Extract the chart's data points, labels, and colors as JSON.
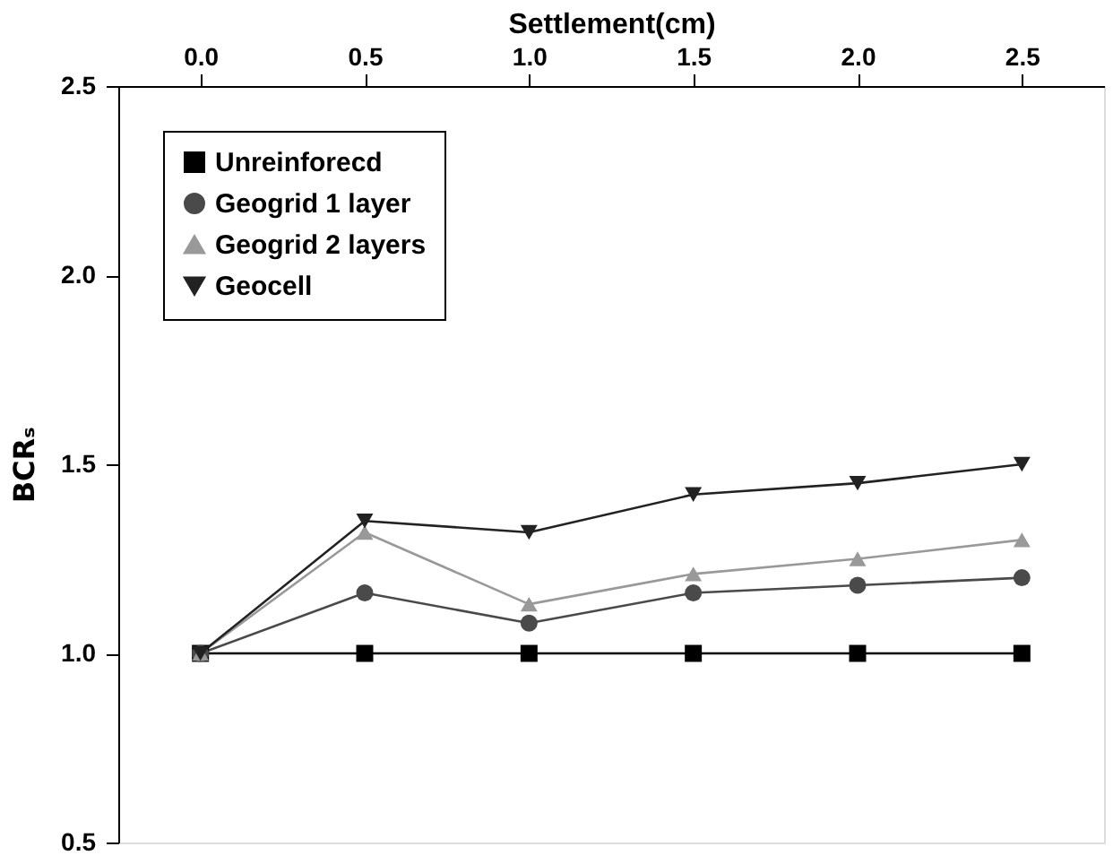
{
  "chart_data": {
    "type": "line",
    "xlabel": "Settlement(cm)",
    "ylabel": "BCRₛ",
    "x": [
      0.0,
      0.5,
      1.0,
      1.5,
      2.0,
      2.5
    ],
    "xlim": [
      -0.25,
      2.75
    ],
    "xticks": [
      {
        "value": 0,
        "label": "0.0"
      },
      0.5,
      {
        "value": 1,
        "label": "1.0"
      },
      1.5,
      {
        "value": 2,
        "label": "2.0"
      },
      2.5
    ],
    "ylim": [
      0.5,
      2.5
    ],
    "yticks": [
      0.5,
      {
        "value": 1,
        "label": "1.0"
      },
      1.5,
      {
        "value": 2,
        "label": "2.0"
      },
      2.5
    ],
    "grid": false,
    "legend": "top left",
    "line_style": "solid",
    "series": [
      {
        "name": "Unreinforecd",
        "color": "#000000",
        "marker": "square",
        "values": [
          1.0,
          1.0,
          1.0,
          1.0,
          1.0,
          1.0
        ]
      },
      {
        "name": "Geogrid 1 layer",
        "color": "#4a4a4a",
        "marker": "circle",
        "values": [
          1.0,
          1.16,
          1.08,
          1.16,
          1.18,
          1.2
        ]
      },
      {
        "name": "Geogrid 2 layers",
        "color": "#999999",
        "marker": "triangle",
        "values": [
          1.0,
          1.32,
          1.13,
          1.21,
          1.25,
          1.3
        ]
      },
      {
        "name": "Geocell",
        "color": "#222222",
        "marker": "triangle-down",
        "values": [
          1.0,
          1.35,
          1.32,
          1.42,
          1.45,
          1.5
        ]
      }
    ]
  }
}
